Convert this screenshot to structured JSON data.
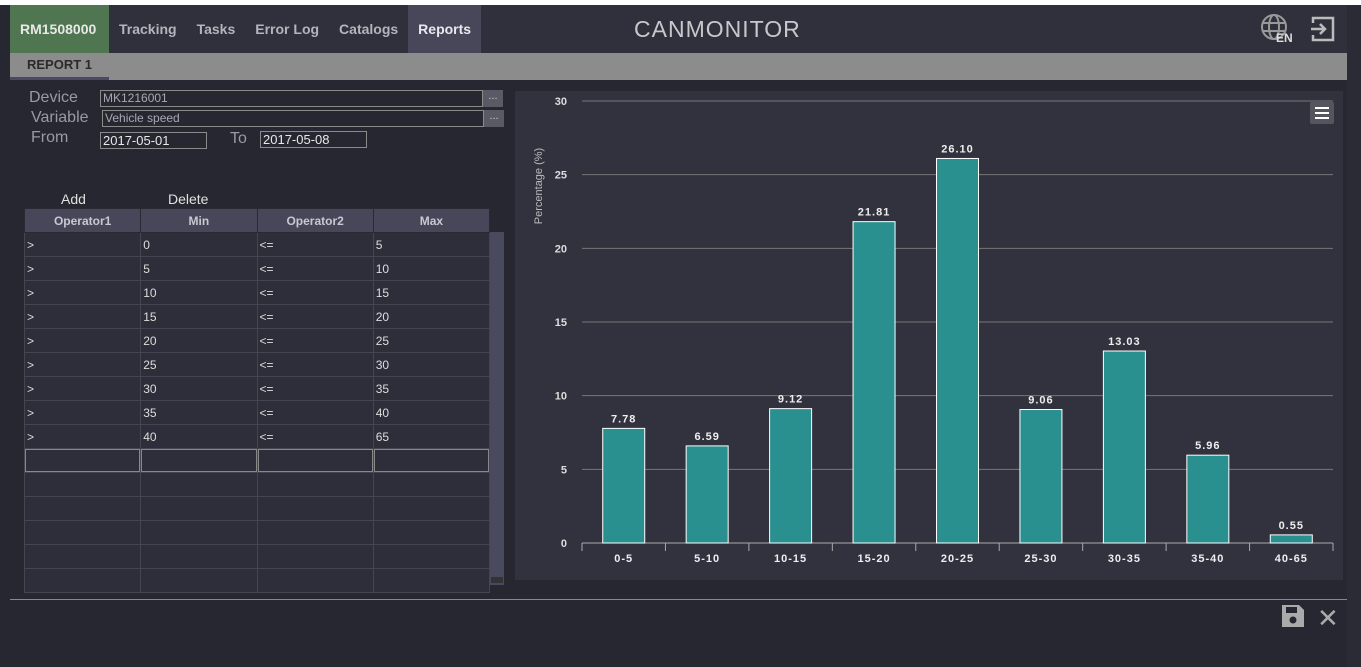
{
  "nav": {
    "device": "RM1508000",
    "tabs": [
      "Tracking",
      "Tasks",
      "Error Log",
      "Catalogs",
      "Reports"
    ],
    "active": "Reports",
    "logo_light": "CAN",
    "logo_bold": "MONITOR",
    "lang": "EN"
  },
  "subtab": "REPORT 1",
  "form": {
    "device_label": "Device",
    "device_value": "MK1216001",
    "variable_label": "Variable",
    "variable_value": "Vehicle speed",
    "from_label": "From",
    "from_value": "2017-05-01",
    "to_label": "To",
    "to_value": "2017-05-08",
    "browse": "..."
  },
  "actions": {
    "add": "Add",
    "delete": "Delete"
  },
  "table": {
    "headers": [
      "Operator1",
      "Min",
      "Operator2",
      "Max"
    ],
    "rows": [
      [
        ">",
        "0",
        "<=",
        "5"
      ],
      [
        ">",
        "5",
        "<=",
        "10"
      ],
      [
        ">",
        "10",
        "<=",
        "15"
      ],
      [
        ">",
        "15",
        "<=",
        "20"
      ],
      [
        ">",
        "20",
        "<=",
        "25"
      ],
      [
        ">",
        "25",
        "<=",
        "30"
      ],
      [
        ">",
        "30",
        "<=",
        "35"
      ],
      [
        ">",
        "35",
        "<=",
        "40"
      ],
      [
        ">",
        "40",
        "<=",
        "65"
      ]
    ]
  },
  "chart_data": {
    "type": "bar",
    "categories": [
      "0-5",
      "5-10",
      "10-15",
      "15-20",
      "20-25",
      "25-30",
      "30-35",
      "35-40",
      "40-65"
    ],
    "values": [
      7.78,
      6.59,
      9.12,
      21.81,
      26.1,
      9.06,
      13.03,
      5.96,
      0.55
    ],
    "labels": [
      "7.78",
      "6.59",
      "9.12",
      "21.81",
      "26.10",
      "9.06",
      "13.03",
      "5.96",
      "0.55"
    ],
    "ylabel": "Percentage (%)",
    "ylim": [
      0,
      30
    ],
    "yticks": [
      0,
      5,
      10,
      15,
      20,
      25,
      30
    ],
    "color": "#2a8f8f",
    "grid": true
  }
}
